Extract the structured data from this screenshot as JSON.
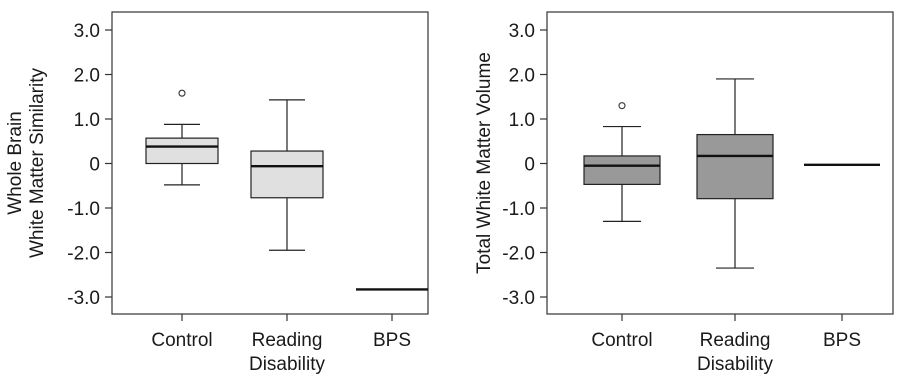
{
  "chart_data": [
    {
      "type": "box",
      "ylabel_lines": [
        "Whole Brain",
        "White Matter Similarity"
      ],
      "ylim": [
        -3.4,
        3.4
      ],
      "yticks": [
        3.0,
        2.0,
        1.0,
        0,
        -1.0,
        -2.0,
        -3.0
      ],
      "ytick_labels": [
        "3.0",
        "2.0",
        "1.0",
        "0",
        "-1.0",
        "-2.0",
        "-3.0"
      ],
      "categories": [
        {
          "label_lines": [
            "Control"
          ]
        },
        {
          "label_lines": [
            "Reading",
            "Disability"
          ]
        },
        {
          "label_lines": [
            "BPS"
          ]
        }
      ],
      "boxes": [
        {
          "min": -0.48,
          "q1": 0.0,
          "median": 0.38,
          "q3": 0.57,
          "max": 0.88,
          "outliers": [
            1.58
          ],
          "fill": "#e0e0e0"
        },
        {
          "min": -1.95,
          "q1": -0.77,
          "median": -0.06,
          "q3": 0.28,
          "max": 1.43,
          "outliers": [],
          "fill": "#e0e0e0"
        },
        {
          "value": -2.83,
          "single": true
        }
      ]
    },
    {
      "type": "box",
      "ylabel_lines": [
        "Total White Matter Volume"
      ],
      "ylim": [
        -3.4,
        3.4
      ],
      "yticks": [
        3.0,
        2.0,
        1.0,
        0,
        -1.0,
        -2.0,
        -3.0
      ],
      "ytick_labels": [
        "3.0",
        "2.0",
        "1.0",
        "0",
        "-1.0",
        "-2.0",
        "-3.0"
      ],
      "categories": [
        {
          "label_lines": [
            "Control"
          ]
        },
        {
          "label_lines": [
            "Reading",
            "Disability"
          ]
        },
        {
          "label_lines": [
            "BPS"
          ]
        }
      ],
      "boxes": [
        {
          "min": -1.3,
          "q1": -0.47,
          "median": -0.05,
          "q3": 0.17,
          "max": 0.83,
          "outliers": [
            1.3
          ],
          "fill": "#999999"
        },
        {
          "min": -2.35,
          "q1": -0.79,
          "median": 0.17,
          "q3": 0.65,
          "max": 1.9,
          "outliers": [],
          "fill": "#999999"
        },
        {
          "value": -0.03,
          "single": true
        }
      ]
    }
  ]
}
